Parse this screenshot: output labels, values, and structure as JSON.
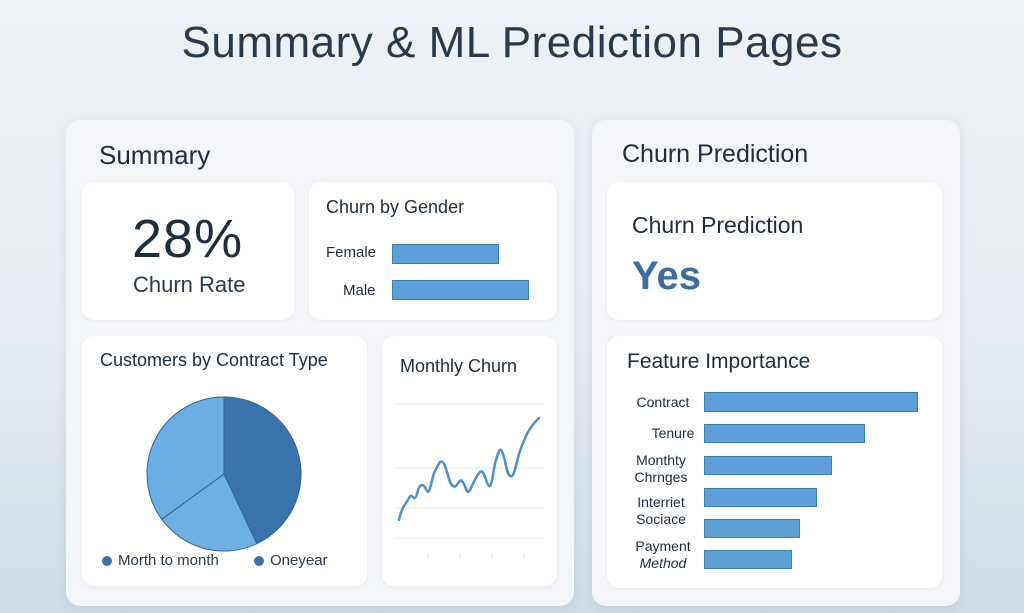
{
  "page_title": "Summary & ML Prediction Pages",
  "summary": {
    "title": "Summary",
    "churn_rate": {
      "value": "28%",
      "label": "Churn Rate"
    },
    "churn_by_gender": {
      "title": "Churn by Gender",
      "bars": [
        {
          "label": "Female",
          "value": 0.78
        },
        {
          "label": "Male",
          "value": 1.0
        }
      ]
    },
    "contract_type": {
      "title": "Customers by Contract Type",
      "legend": [
        {
          "label": "Morth to month",
          "color": "#3a72aa"
        },
        {
          "label": "Oneyear",
          "color": "#3a72aa"
        }
      ],
      "slices": [
        {
          "share": 0.43,
          "color": "#3a72aa"
        },
        {
          "share": 0.22,
          "color": "#6fb0e2"
        },
        {
          "share": 0.35,
          "color": "#6aaee3"
        }
      ]
    },
    "monthly_churn": {
      "title": "Monthly Churn"
    }
  },
  "prediction": {
    "title": "Churn Prediction",
    "card_title": "Churn Prediction",
    "value": "Yes",
    "feature_importance": {
      "title": "Feature Importance",
      "items": [
        {
          "line1": "Contract",
          "line2": "",
          "value": 1.0
        },
        {
          "line1": "Tenure",
          "line2": "",
          "value": 0.75
        },
        {
          "line1": "Monthty",
          "line2": "Chrnges",
          "value": 0.6
        },
        {
          "line1": "Interriet",
          "line2": "Sociace",
          "value": 0.53
        },
        {
          "line1": "",
          "line2": "",
          "value": 0.45
        },
        {
          "line1": "Payment",
          "line2": "Method",
          "value": 0.41
        }
      ]
    }
  },
  "colors": {
    "bar": "#5c9fd6",
    "pie_dark": "#3a72aa",
    "pie_light": "#6fb0e2",
    "line": "#4a8fcf"
  }
}
